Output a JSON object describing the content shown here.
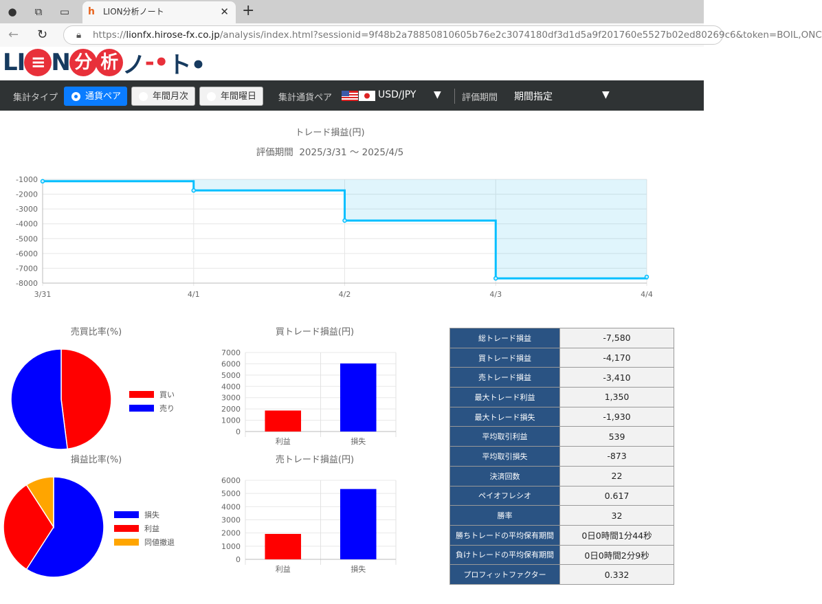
{
  "browser": {
    "tab_title": "LION分析ノート",
    "url_host": "lionfx.hirose-fx.co.jp",
    "url_prefix": "https://",
    "url_path": "/analysis/index.html?sessionid=9f48b2a78850810605b76e2c3074180df3d1d5a9f201760e5527b02ed80269c6&token=BOIL,ONC"
  },
  "logo": {
    "text": "LION分析ノート"
  },
  "nav": {
    "type_label": "集計タイプ",
    "options": [
      "通貨ペア",
      "年間月次",
      "年間曜日"
    ],
    "selected": 0,
    "pair_label": "集計通貨ペア",
    "pair_value": "USD/JPY",
    "period_label": "評価期間",
    "period_value": "期間指定"
  },
  "colors": {
    "buy": "#ff0000",
    "sell": "#0000ff",
    "loss": "#0000ff",
    "profit": "#ff0000",
    "even": "#ffa500",
    "line": "#00bfff",
    "table_header": "#2a5383"
  },
  "chart_data": [
    {
      "type": "line",
      "title": "トレード損益(円)",
      "subtitle_label": "評価期間",
      "subtitle": "2025/3/31 ～ 2025/4/5",
      "stepped": true,
      "categories": [
        "3/31",
        "4/1",
        "4/2",
        "4/3",
        "4/4"
      ],
      "values": [
        -1130,
        -1750,
        -3780,
        -7680,
        -7580
      ],
      "ylim": [
        -8000,
        -1000
      ],
      "yticks": [
        -1000,
        -2000,
        -3000,
        -4000,
        -5000,
        -6000,
        -7000,
        -8000
      ],
      "grid": true
    },
    {
      "type": "pie",
      "title": "売買比率(%)",
      "labels": [
        "買い",
        "売り"
      ],
      "values": [
        48,
        52
      ],
      "colors": [
        "#ff0000",
        "#0000ff"
      ],
      "legend": "right"
    },
    {
      "type": "pie",
      "title": "損益比率(%)",
      "labels": [
        "損失",
        "利益",
        "同値撤退"
      ],
      "values": [
        59.1,
        31.8,
        9.1
      ],
      "colors": [
        "#0000ff",
        "#ff0000",
        "#ffa500"
      ],
      "legend": "right"
    },
    {
      "type": "bar",
      "title": "買トレード損益(円)",
      "categories": [
        "利益",
        "損失"
      ],
      "values": [
        1860,
        6030
      ],
      "colors": [
        "#ff0000",
        "#0000ff"
      ],
      "ylim": [
        0,
        7000
      ],
      "yticks": [
        0,
        1000,
        2000,
        3000,
        4000,
        5000,
        6000,
        7000
      ]
    },
    {
      "type": "bar",
      "title": "売トレード損益(円)",
      "categories": [
        "利益",
        "損失"
      ],
      "values": [
        1930,
        5340
      ],
      "colors": [
        "#ff0000",
        "#0000ff"
      ],
      "ylim": [
        0,
        6000
      ],
      "yticks": [
        0,
        1000,
        2000,
        3000,
        4000,
        5000,
        6000
      ]
    }
  ],
  "stats": [
    {
      "k": "総トレード損益",
      "v": "-7,580"
    },
    {
      "k": "買トレード損益",
      "v": "-4,170"
    },
    {
      "k": "売トレード損益",
      "v": "-3,410"
    },
    {
      "k": "最大トレード利益",
      "v": "1,350"
    },
    {
      "k": "最大トレード損失",
      "v": "-1,930"
    },
    {
      "k": "平均取引利益",
      "v": "539"
    },
    {
      "k": "平均取引損失",
      "v": "-873"
    },
    {
      "k": "決済回数",
      "v": "22"
    },
    {
      "k": "ペイオフレシオ",
      "v": "0.617"
    },
    {
      "k": "勝率",
      "v": "32"
    },
    {
      "k": "勝ちトレードの平均保有期間",
      "v": "0日0時間1分44秒"
    },
    {
      "k": "負けトレードの平均保有期間",
      "v": "0日0時間2分9秒"
    },
    {
      "k": "プロフィットファクター",
      "v": "0.332"
    }
  ]
}
